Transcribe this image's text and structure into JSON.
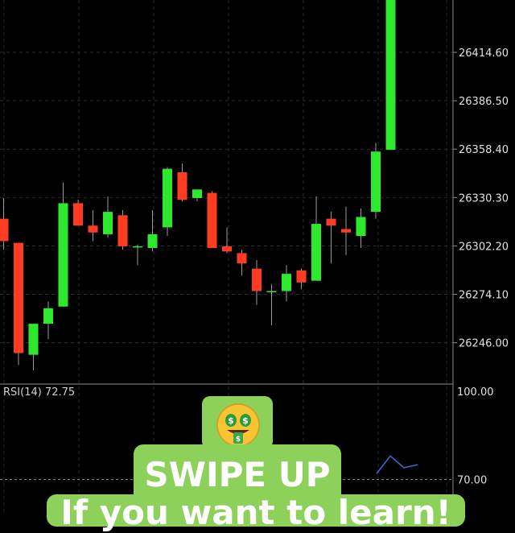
{
  "chart_data": {
    "type": "candlestick",
    "price_ticks": [
      "26414.60",
      "26386.50",
      "26358.40",
      "26330.30",
      "26302.20",
      "26274.10",
      "26246.00"
    ],
    "tick_values": [
      26414.6,
      26386.5,
      26358.4,
      26330.3,
      26302.2,
      26274.1,
      26246.0
    ],
    "ylim": [
      26222,
      26445
    ],
    "grid": true,
    "colors": {
      "up": "#2ee82e",
      "down": "#ff3b22",
      "wick": "#9a9a9a",
      "grid": "#2b2b2b"
    },
    "candles": [
      {
        "o": 26318,
        "h": 26330,
        "l": 26300,
        "c": 26305
      },
      {
        "o": 26304,
        "h": 26304,
        "l": 26233,
        "c": 26240
      },
      {
        "o": 26239,
        "h": 26256,
        "l": 26230,
        "c": 26257
      },
      {
        "o": 26257,
        "h": 26270,
        "l": 26248,
        "c": 26266
      },
      {
        "o": 26267,
        "h": 26339,
        "l": 26267,
        "c": 26327
      },
      {
        "o": 26327,
        "h": 26329,
        "l": 26314,
        "c": 26314
      },
      {
        "o": 26314,
        "h": 26323,
        "l": 26305,
        "c": 26310
      },
      {
        "o": 26309,
        "h": 26331,
        "l": 26307,
        "c": 26322
      },
      {
        "o": 26320,
        "h": 26323,
        "l": 26300,
        "c": 26302
      },
      {
        "o": 26302,
        "h": 26303,
        "l": 26291,
        "c": 26302
      },
      {
        "o": 26301,
        "h": 26323,
        "l": 26299,
        "c": 26309
      },
      {
        "o": 26313,
        "h": 26348,
        "l": 26308,
        "c": 26347
      },
      {
        "o": 26345,
        "h": 26350,
        "l": 26328,
        "c": 26329
      },
      {
        "o": 26330,
        "h": 26334,
        "l": 26328,
        "c": 26335
      },
      {
        "o": 26333,
        "h": 26334,
        "l": 26301,
        "c": 26301
      },
      {
        "o": 26302,
        "h": 26313,
        "l": 26298,
        "c": 26299
      },
      {
        "o": 26298,
        "h": 26300,
        "l": 26285,
        "c": 26292
      },
      {
        "o": 26289,
        "h": 26294,
        "l": 26268,
        "c": 26276
      },
      {
        "o": 26276,
        "h": 26280,
        "l": 26256,
        "c": 26276
      },
      {
        "o": 26276,
        "h": 26291,
        "l": 26270,
        "c": 26286
      },
      {
        "o": 26288,
        "h": 26289,
        "l": 26277,
        "c": 26281
      },
      {
        "o": 26282,
        "h": 26331,
        "l": 26282,
        "c": 26315
      },
      {
        "o": 26318,
        "h": 26322,
        "l": 26292,
        "c": 26314
      },
      {
        "o": 26312,
        "h": 26325,
        "l": 26297,
        "c": 26310
      },
      {
        "o": 26308,
        "h": 26324,
        "l": 26301,
        "c": 26319
      },
      {
        "o": 26322,
        "h": 26362,
        "l": 26318,
        "c": 26357
      },
      {
        "o": 26358,
        "h": 26445,
        "l": 26358,
        "c": 26445
      }
    ],
    "rsi": {
      "label": "RSI(14) 72.75",
      "ticks": [
        "100.00",
        "70.00"
      ],
      "tick_values": [
        100,
        70
      ],
      "ylim": [
        60,
        100
      ],
      "line": [
        72,
        78,
        74,
        75
      ],
      "line_color": "#3a6fd8"
    }
  },
  "overlay": {
    "emoji": "money-mouth-face",
    "headline": "SWIPE UP",
    "subtext": "If you want to learn!",
    "card_color": "#8dd15a"
  }
}
